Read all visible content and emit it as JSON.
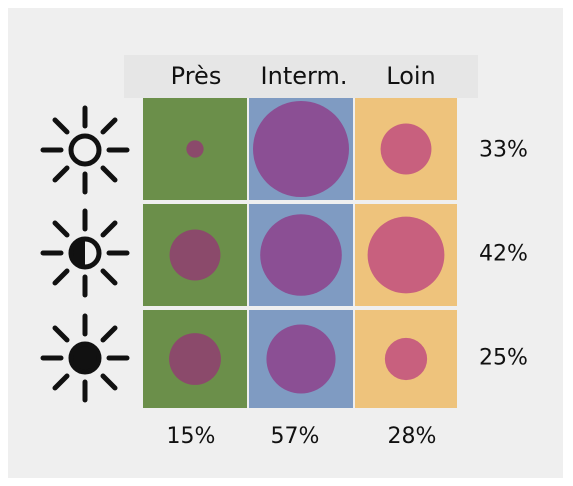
{
  "columns": [
    {
      "label": "Près",
      "total": "15%",
      "color": "#6b8f4a"
    },
    {
      "label": "Interm.",
      "total": "57%",
      "color": "#7f9bc2"
    },
    {
      "label": "Loin",
      "total": "28%",
      "color": "#eec37c"
    }
  ],
  "rows": [
    {
      "icon": "sun-empty-icon",
      "total": "33%"
    },
    {
      "icon": "sun-half-icon",
      "total": "42%"
    },
    {
      "icon": "sun-full-icon",
      "total": "25%"
    }
  ],
  "circles": [
    [
      {
        "relative_size": 0.18,
        "color": "#8b4a6b"
      },
      {
        "relative_size": 1.0,
        "color": "#8b4f94"
      },
      {
        "relative_size": 0.53,
        "color": "#c8607e"
      }
    ],
    [
      {
        "relative_size": 0.53,
        "color": "#8b4a6b"
      },
      {
        "relative_size": 0.85,
        "color": "#8b4f94"
      },
      {
        "relative_size": 0.8,
        "color": "#c8607e"
      }
    ],
    [
      {
        "relative_size": 0.54,
        "color": "#8b4a6b"
      },
      {
        "relative_size": 0.72,
        "color": "#8b4f94"
      },
      {
        "relative_size": 0.44,
        "color": "#c8607e"
      }
    ]
  ],
  "colors": {
    "panel_background": "#efefef",
    "header_band": "#e6e6e6",
    "cell_divider": "#ffffff",
    "icon_stroke": "#111111"
  }
}
